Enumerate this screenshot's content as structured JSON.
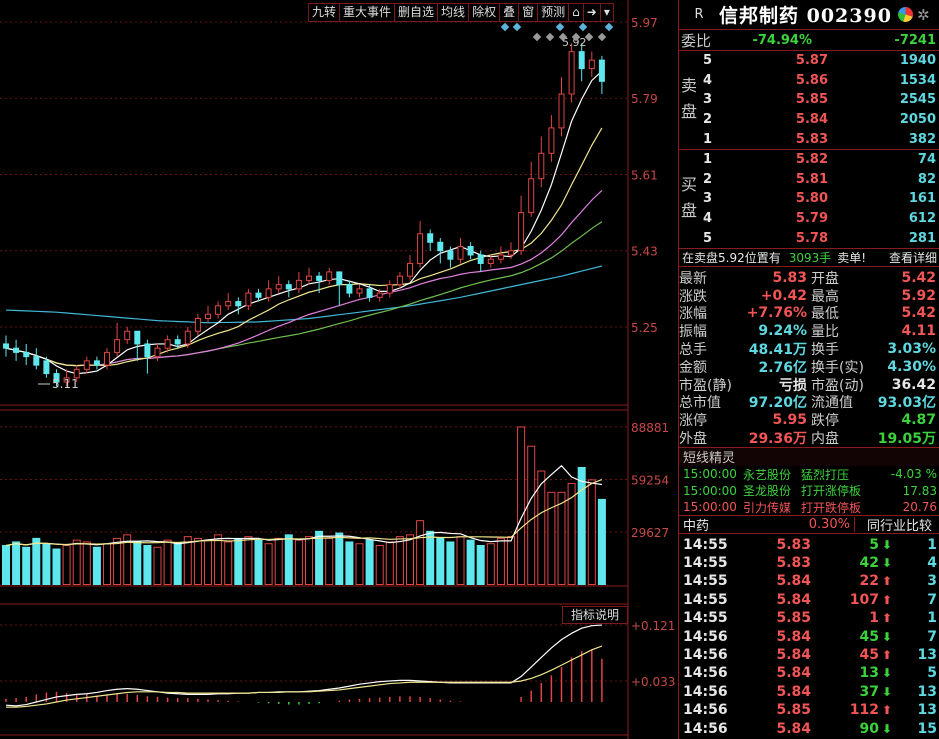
{
  "toolbar": {
    "items": [
      "九转",
      "重大事件",
      "删自选",
      "均线",
      "除权",
      "叠",
      "窗",
      "预测",
      "lock-icon",
      "next-icon",
      "dropdown-icon"
    ]
  },
  "price_axis": {
    "labels": [
      "5.97",
      "5.79",
      "5.61",
      "5.43",
      "5.25"
    ],
    "high_marker": "5.92",
    "low_marker": "5.11"
  },
  "volume_axis": {
    "labels": [
      "88881",
      "59254",
      "29627"
    ]
  },
  "macd_axis": {
    "labels": [
      "+0.121",
      "+0.033"
    ],
    "button": "指标说明"
  },
  "chart_data": {
    "type": "candlestick",
    "candles": [
      [
        5.21,
        5.2,
        5.23,
        5.18
      ],
      [
        5.2,
        5.19,
        5.22,
        5.17
      ],
      [
        5.19,
        5.18,
        5.21,
        5.16
      ],
      [
        5.18,
        5.16,
        5.2,
        5.15
      ],
      [
        5.17,
        5.14,
        5.18,
        5.13
      ],
      [
        5.14,
        5.12,
        5.15,
        5.11
      ],
      [
        5.12,
        5.13,
        5.15,
        5.11
      ],
      [
        5.13,
        5.15,
        5.16,
        5.12
      ],
      [
        5.15,
        5.17,
        5.18,
        5.14
      ],
      [
        5.17,
        5.16,
        5.18,
        5.15
      ],
      [
        5.16,
        5.19,
        5.2,
        5.15
      ],
      [
        5.19,
        5.22,
        5.26,
        5.18
      ],
      [
        5.22,
        5.24,
        5.25,
        5.21
      ],
      [
        5.24,
        5.21,
        5.24,
        5.17
      ],
      [
        5.21,
        5.18,
        5.22,
        5.14
      ],
      [
        5.18,
        5.2,
        5.21,
        5.17
      ],
      [
        5.2,
        5.22,
        5.23,
        5.19
      ],
      [
        5.22,
        5.21,
        5.23,
        5.2
      ],
      [
        5.21,
        5.24,
        5.25,
        5.2
      ],
      [
        5.24,
        5.27,
        5.28,
        5.23
      ],
      [
        5.27,
        5.28,
        5.3,
        5.26
      ],
      [
        5.28,
        5.3,
        5.31,
        5.27
      ],
      [
        5.3,
        5.31,
        5.33,
        5.29
      ],
      [
        5.31,
        5.3,
        5.32,
        5.28
      ],
      [
        5.3,
        5.33,
        5.34,
        5.29
      ],
      [
        5.33,
        5.32,
        5.34,
        5.31
      ],
      [
        5.32,
        5.34,
        5.36,
        5.31
      ],
      [
        5.34,
        5.35,
        5.37,
        5.33
      ],
      [
        5.35,
        5.34,
        5.36,
        5.32
      ],
      [
        5.34,
        5.36,
        5.38,
        5.33
      ],
      [
        5.36,
        5.37,
        5.39,
        5.35
      ],
      [
        5.37,
        5.36,
        5.38,
        5.33
      ],
      [
        5.36,
        5.38,
        5.39,
        5.35
      ],
      [
        5.38,
        5.35,
        5.38,
        5.3
      ],
      [
        5.35,
        5.33,
        5.36,
        5.32
      ],
      [
        5.33,
        5.34,
        5.35,
        5.32
      ],
      [
        5.34,
        5.32,
        5.35,
        5.31
      ],
      [
        5.32,
        5.33,
        5.34,
        5.31
      ],
      [
        5.33,
        5.35,
        5.36,
        5.32
      ],
      [
        5.35,
        5.37,
        5.38,
        5.34
      ],
      [
        5.37,
        5.4,
        5.42,
        5.36
      ],
      [
        5.4,
        5.47,
        5.5,
        5.39
      ],
      [
        5.47,
        5.45,
        5.48,
        5.43
      ],
      [
        5.45,
        5.43,
        5.46,
        5.4
      ],
      [
        5.43,
        5.41,
        5.44,
        5.39
      ],
      [
        5.41,
        5.44,
        5.46,
        5.4
      ],
      [
        5.44,
        5.42,
        5.45,
        5.41
      ],
      [
        5.42,
        5.4,
        5.43,
        5.38
      ],
      [
        5.4,
        5.41,
        5.42,
        5.39
      ],
      [
        5.41,
        5.42,
        5.44,
        5.4
      ],
      [
        5.42,
        5.43,
        5.45,
        5.41
      ],
      [
        5.43,
        5.52,
        5.56,
        5.42
      ],
      [
        5.52,
        5.6,
        5.64,
        5.51
      ],
      [
        5.6,
        5.66,
        5.7,
        5.58
      ],
      [
        5.66,
        5.72,
        5.75,
        5.64
      ],
      [
        5.72,
        5.8,
        5.84,
        5.7
      ],
      [
        5.8,
        5.9,
        5.92,
        5.78
      ],
      [
        5.9,
        5.86,
        5.92,
        5.83
      ],
      [
        5.86,
        5.88,
        5.9,
        5.84
      ],
      [
        5.88,
        5.83,
        5.89,
        5.8
      ]
    ],
    "long_ma": [
      5.29,
      5.285,
      5.275,
      5.265,
      5.26,
      5.262,
      5.27,
      5.285,
      5.3,
      5.32,
      5.345,
      5.37,
      5.4
    ],
    "volumes": [
      22000,
      24000,
      21000,
      26000,
      23000,
      20000,
      22000,
      25000,
      24000,
      21000,
      23000,
      26000,
      28000,
      24000,
      22000,
      21000,
      25000,
      23000,
      27000,
      26000,
      25000,
      28000,
      24000,
      26000,
      27000,
      25000,
      23000,
      26000,
      28000,
      25000,
      27000,
      30000,
      26000,
      29000,
      24000,
      23000,
      25000,
      22000,
      24000,
      27000,
      28000,
      36000,
      30000,
      26000,
      24000,
      27000,
      25000,
      22000,
      23000,
      26000,
      27000,
      88881,
      78000,
      64000,
      52000,
      52000,
      57000,
      66000,
      59000,
      48000
    ],
    "macd_bars": [
      0.005,
      0.006,
      0.008,
      0.012,
      0.015,
      0.016,
      0.014,
      0.013,
      0.012,
      0.01,
      0.012,
      0.014,
      0.013,
      0.011,
      0.009,
      0.008,
      0.007,
      0.006,
      0.006,
      0.005,
      0.004,
      0.003,
      0.002,
      0.001,
      0.0,
      -0.001,
      -0.002,
      -0.003,
      -0.004,
      -0.004,
      -0.003,
      -0.002,
      0.0,
      0.002,
      0.004,
      0.005,
      0.006,
      0.007,
      0.008,
      0.009,
      0.009,
      0.008,
      0.006,
      0.004,
      0.002,
      0.001,
      0.0,
      0.0,
      0.0,
      0.0,
      0.0,
      0.008,
      0.018,
      0.03,
      0.042,
      0.055,
      0.07,
      0.08,
      0.082,
      0.068
    ],
    "dif": [
      -0.005,
      -0.006,
      -0.004,
      0.0,
      0.004,
      0.008,
      0.01,
      0.012,
      0.013,
      0.015,
      0.018,
      0.02,
      0.021,
      0.02,
      0.018,
      0.016,
      0.014,
      0.013,
      0.012,
      0.012,
      0.012,
      0.013,
      0.013,
      0.014,
      0.014,
      0.015,
      0.015,
      0.016,
      0.016,
      0.016,
      0.017,
      0.018,
      0.02,
      0.022,
      0.025,
      0.028,
      0.03,
      0.032,
      0.033,
      0.034,
      0.034,
      0.033,
      0.032,
      0.031,
      0.03,
      0.03,
      0.03,
      0.03,
      0.03,
      0.03,
      0.03,
      0.04,
      0.055,
      0.07,
      0.085,
      0.098,
      0.108,
      0.116,
      0.12,
      0.121
    ],
    "dea": [
      -0.008,
      -0.008,
      -0.007,
      -0.005,
      -0.003,
      0.0,
      0.003,
      0.005,
      0.007,
      0.009,
      0.011,
      0.013,
      0.015,
      0.016,
      0.016,
      0.016,
      0.015,
      0.015,
      0.014,
      0.014,
      0.014,
      0.014,
      0.014,
      0.014,
      0.014,
      0.015,
      0.015,
      0.015,
      0.016,
      0.016,
      0.016,
      0.017,
      0.018,
      0.019,
      0.021,
      0.023,
      0.025,
      0.027,
      0.029,
      0.03,
      0.031,
      0.031,
      0.031,
      0.031,
      0.031,
      0.031,
      0.031,
      0.031,
      0.031,
      0.031,
      0.031,
      0.033,
      0.037,
      0.043,
      0.05,
      0.058,
      0.066,
      0.074,
      0.082,
      0.088
    ]
  },
  "quote": {
    "title": "信邦制药 002390",
    "r_label": "R",
    "weibi": {
      "label": "委比",
      "pct": "-74.94%",
      "diff": "-7241"
    },
    "sell_label": "卖盘",
    "buy_label": "买盘",
    "sell": [
      {
        "lvl": "5",
        "price": "5.87",
        "qty": "1940"
      },
      {
        "lvl": "4",
        "price": "5.86",
        "qty": "1534"
      },
      {
        "lvl": "3",
        "price": "5.85",
        "qty": "2545"
      },
      {
        "lvl": "2",
        "price": "5.84",
        "qty": "2050"
      },
      {
        "lvl": "1",
        "price": "5.83",
        "qty": "382"
      }
    ],
    "buy": [
      {
        "lvl": "1",
        "price": "5.82",
        "qty": "74"
      },
      {
        "lvl": "2",
        "price": "5.81",
        "qty": "82"
      },
      {
        "lvl": "3",
        "price": "5.80",
        "qty": "161"
      },
      {
        "lvl": "4",
        "price": "5.79",
        "qty": "612"
      },
      {
        "lvl": "5",
        "price": "5.78",
        "qty": "281"
      }
    ],
    "notice": {
      "text": "在卖盘5.92位置有",
      "qty": "3093手",
      "tail": "卖单!",
      "link": "查看详细"
    },
    "stats": [
      {
        "l1": "最新",
        "v1": "5.83",
        "c1": "red",
        "l2": "开盘",
        "v2": "5.42",
        "c2": "red"
      },
      {
        "l1": "涨跌",
        "v1": "+0.42",
        "c1": "red",
        "l2": "最高",
        "v2": "5.92",
        "c2": "red"
      },
      {
        "l1": "涨幅",
        "v1": "+7.76%",
        "c1": "red",
        "l2": "最低",
        "v2": "5.42",
        "c2": "red"
      },
      {
        "l1": "振幅",
        "v1": "9.24%",
        "c1": "cyan",
        "l2": "量比",
        "v2": "4.11",
        "c2": "red"
      },
      {
        "l1": "总手",
        "v1": "48.41万",
        "c1": "cyan",
        "l2": "换手",
        "v2": "3.03%",
        "c2": "cyan"
      },
      {
        "l1": "金额",
        "v1": "2.76亿",
        "c1": "cyan",
        "l2": "换手(实)",
        "v2": "4.30%",
        "c2": "cyan"
      },
      {
        "l1": "市盈(静)",
        "v1": "亏损",
        "c1": "white",
        "l2": "市盈(动)",
        "v2": "36.42",
        "c2": "white"
      },
      {
        "l1": "总市值",
        "v1": "97.20亿",
        "c1": "cyan",
        "l2": "流通值",
        "v2": "93.03亿",
        "c2": "cyan"
      },
      {
        "l1": "涨停",
        "v1": "5.95",
        "c1": "red",
        "l2": "跌停",
        "v2": "4.87",
        "c2": "green"
      },
      {
        "l1": "外盘",
        "v1": "29.36万",
        "c1": "red",
        "l2": "内盘",
        "v2": "19.05万",
        "c2": "green"
      }
    ],
    "sprite": {
      "title": "短线精灵",
      "rows": [
        {
          "time": "15:00:00",
          "name": "永艺股份",
          "event": "猛烈打压",
          "val": "-4.03 %",
          "color": "green"
        },
        {
          "time": "15:00:00",
          "name": "圣龙股份",
          "event": "打开涨停板",
          "val": "17.83",
          "color": "green"
        },
        {
          "time": "15:00:00",
          "name": "引力传媒",
          "event": "打开跌停板",
          "val": "20.76",
          "color": "red"
        }
      ]
    },
    "industry": {
      "name": "中药",
      "pct": "0.30%",
      "compare": "同行业比较"
    },
    "ticks": [
      {
        "time": "14:55",
        "price": "5.83",
        "vol": "5",
        "dir": "down",
        "n": "1"
      },
      {
        "time": "14:55",
        "price": "5.83",
        "vol": "42",
        "dir": "down",
        "n": "4"
      },
      {
        "time": "14:55",
        "price": "5.84",
        "vol": "22",
        "dir": "up",
        "n": "3"
      },
      {
        "time": "14:55",
        "price": "5.84",
        "vol": "107",
        "dir": "up",
        "n": "7"
      },
      {
        "time": "14:55",
        "price": "5.85",
        "vol": "1",
        "dir": "up",
        "n": "1"
      },
      {
        "time": "14:56",
        "price": "5.84",
        "vol": "45",
        "dir": "down",
        "n": "7"
      },
      {
        "time": "14:56",
        "price": "5.84",
        "vol": "45",
        "dir": "up",
        "n": "13"
      },
      {
        "time": "14:56",
        "price": "5.84",
        "vol": "13",
        "dir": "down",
        "n": "5"
      },
      {
        "time": "14:56",
        "price": "5.84",
        "vol": "37",
        "dir": "down",
        "n": "13"
      },
      {
        "time": "14:56",
        "price": "5.85",
        "vol": "112",
        "dir": "up",
        "n": "13"
      },
      {
        "time": "14:56",
        "price": "5.84",
        "vol": "90",
        "dir": "down",
        "n": "15"
      }
    ]
  },
  "colors": {
    "up": "#e04545",
    "down": "#5ee8ee",
    "border": "#8b1a1a",
    "ma5": "#ffffff",
    "ma10": "#f0e68c",
    "ma20": "#e080e0",
    "ma30": "#6fbf4f",
    "long": "#40b8d8"
  }
}
